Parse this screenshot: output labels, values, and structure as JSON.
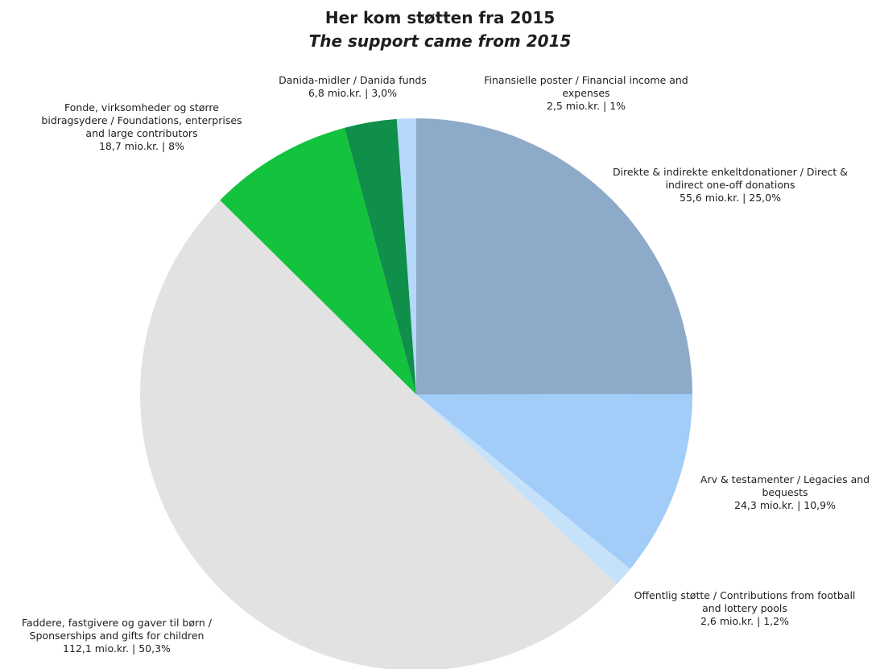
{
  "chart_data": {
    "type": "pie",
    "title": "Her kom støtten fra 2015",
    "subtitle": "The support came from 2015",
    "legend": "none",
    "slices": [
      {
        "label": "Direkte & indirekte enkeltdonationer / Direct & indirect one-off donations",
        "value_text": "55,6 mio.kr. | 25,0%",
        "value": 55.6,
        "percent": 25.0,
        "color": "#8eaac9"
      },
      {
        "label": "Arv & testamenter / Legacies and bequests",
        "value_text": "24,3 mio.kr. | 10,9%",
        "value": 24.3,
        "percent": 10.9,
        "color": "#a3cdf9"
      },
      {
        "label": "Offentlig støtte / Contributions from football and lottery pools",
        "value_text": "2,6 mio.kr. | 1,2%",
        "value": 2.6,
        "percent": 1.2,
        "color": "#c6e2fb"
      },
      {
        "label": "Faddere, fastgivere og gaver til børn / Sponserships and gifts for children",
        "value_text": "112,1 mio.kr. | 50,3%",
        "value": 112.1,
        "percent": 50.3,
        "color": "#e2e2e2"
      },
      {
        "label": "Fonde, virksomheder og større bidragsydere / Foundations, enterprises and large contributors",
        "value_text": "18,7 mio.kr. | 8%",
        "value": 18.7,
        "percent": 8.0,
        "color": "#13c23d"
      },
      {
        "label": "Danida-midler / Danida funds",
        "value_text": "6,8 mio.kr. | 3,0%",
        "value": 6.8,
        "percent": 3.0,
        "color": "#0f8f4a"
      },
      {
        "label": "Finansielle poster / Financial income and expenses",
        "value_text": "2,5 mio.kr. | 1%",
        "value": 2.5,
        "percent": 1.0,
        "color": "#b5d8fb"
      }
    ]
  }
}
